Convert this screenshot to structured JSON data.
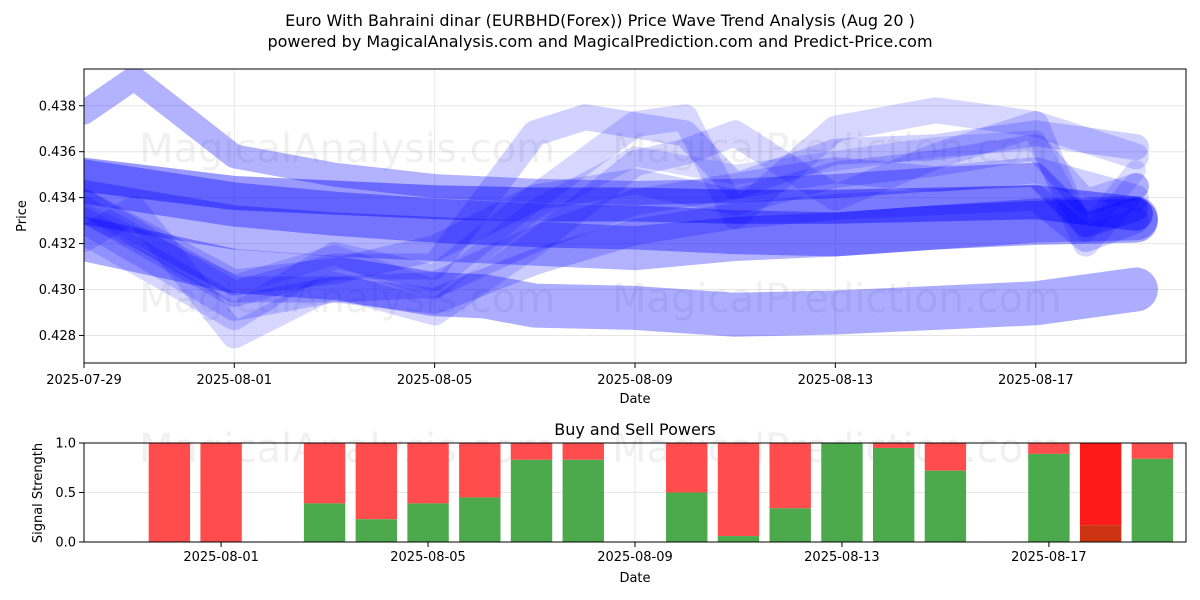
{
  "figure": {
    "title_line1": "Euro With Bahraini dinar (EURBHD(Forex)) Price Wave Trend Analysis (Aug 20 )",
    "title_line2": "powered by MagicalAnalysis.com and MagicalPrediction.com and Predict-Price.com",
    "watermark_left": "MagicalAnalysis.com",
    "watermark_right": "MagicalPrediction.com"
  },
  "chart_data": [
    {
      "type": "line",
      "xlabel": "Date",
      "ylabel": "Price",
      "x_ticks": [
        "2025-07-29",
        "2025-08-01",
        "2025-08-05",
        "2025-08-09",
        "2025-08-13",
        "2025-08-17"
      ],
      "y_ticks": [
        "0.428",
        "0.430",
        "0.432",
        "0.434",
        "0.436",
        "0.438"
      ],
      "ylim": [
        0.4268,
        0.4396
      ],
      "xlim": [
        "2025-07-29",
        "2025-08-20"
      ],
      "grid": true,
      "band_color": "#0000ff",
      "series": [
        {
          "x": [
            "2025-07-29",
            "2025-08-01",
            "2025-08-03",
            "2025-08-05",
            "2025-08-07",
            "2025-08-09",
            "2025-08-11",
            "2025-08-13",
            "2025-08-15",
            "2025-08-17",
            "2025-08-19"
          ],
          "values": [
            0.4338,
            0.4327,
            0.4324,
            0.4322,
            0.432,
            0.4318,
            0.4322,
            0.4324,
            0.4327,
            0.433,
            0.4331
          ],
          "width": 44,
          "opacity": 0.3
        },
        {
          "x": [
            "2025-07-29",
            "2025-08-01",
            "2025-08-03",
            "2025-08-05",
            "2025-08-07",
            "2025-08-09",
            "2025-08-11",
            "2025-08-13",
            "2025-08-15",
            "2025-08-17",
            "2025-08-19"
          ],
          "values": [
            0.4347,
            0.4337,
            0.4333,
            0.433,
            0.4328,
            0.4327,
            0.4325,
            0.4324,
            0.4327,
            0.4329,
            0.433
          ],
          "width": 44,
          "opacity": 0.35
        },
        {
          "x": [
            "2025-07-29",
            "2025-08-01",
            "2025-08-03",
            "2025-08-05",
            "2025-08-07",
            "2025-08-09",
            "2025-08-11",
            "2025-08-13",
            "2025-08-15",
            "2025-08-17",
            "2025-08-19"
          ],
          "values": [
            0.435,
            0.4342,
            0.434,
            0.4338,
            0.4337,
            0.4337,
            0.4336,
            0.4336,
            0.4337,
            0.4338,
            0.4333
          ],
          "width": 34,
          "opacity": 0.4
        },
        {
          "x": [
            "2025-07-29",
            "2025-08-01",
            "2025-08-03",
            "2025-08-05",
            "2025-08-06",
            "2025-08-07",
            "2025-08-09",
            "2025-08-11",
            "2025-08-13",
            "2025-08-15",
            "2025-08-17",
            "2025-08-19"
          ],
          "values": [
            0.4322,
            0.4308,
            0.4305,
            0.4298,
            0.4297,
            0.4293,
            0.4292,
            0.4289,
            0.429,
            0.4292,
            0.4294,
            0.43
          ],
          "width": 44,
          "opacity": 0.32
        },
        {
          "x": [
            "2025-07-29",
            "2025-08-01",
            "2025-08-03",
            "2025-08-05",
            "2025-08-07",
            "2025-08-09",
            "2025-08-11",
            "2025-08-13",
            "2025-08-15",
            "2025-08-17",
            "2025-08-18",
            "2025-08-19"
          ],
          "values": [
            0.4338,
            0.4303,
            0.4308,
            0.4318,
            0.434,
            0.4347,
            0.4338,
            0.435,
            0.4355,
            0.4362,
            0.4338,
            0.4345
          ],
          "width": 26,
          "opacity": 0.18
        },
        {
          "x": [
            "2025-07-29",
            "2025-08-01",
            "2025-08-03",
            "2025-08-05",
            "2025-08-07",
            "2025-08-08",
            "2025-08-10",
            "2025-08-11",
            "2025-08-13",
            "2025-08-15",
            "2025-08-17",
            "2025-08-19"
          ],
          "values": [
            0.4335,
            0.4298,
            0.431,
            0.431,
            0.4368,
            0.4375,
            0.4368,
            0.4345,
            0.436,
            0.4362,
            0.4368,
            0.4362
          ],
          "width": 26,
          "opacity": 0.18
        },
        {
          "x": [
            "2025-07-29",
            "2025-08-01",
            "2025-08-03",
            "2025-08-05",
            "2025-08-07",
            "2025-08-09",
            "2025-08-10",
            "2025-08-11",
            "2025-08-13",
            "2025-08-15",
            "2025-08-17",
            "2025-08-19"
          ],
          "values": [
            0.4325,
            0.4288,
            0.4315,
            0.4305,
            0.434,
            0.4372,
            0.4375,
            0.4332,
            0.437,
            0.4378,
            0.4372,
            0.4358
          ],
          "width": 26,
          "opacity": 0.16
        },
        {
          "x": [
            "2025-07-29",
            "2025-07-30",
            "2025-08-01",
            "2025-08-03",
            "2025-08-05",
            "2025-08-07",
            "2025-08-09",
            "2025-08-10",
            "2025-08-11",
            "2025-08-13",
            "2025-08-15",
            "2025-08-17",
            "2025-08-18",
            "2025-08-19"
          ],
          "values": [
            0.4322,
            0.4335,
            0.428,
            0.4302,
            0.429,
            0.432,
            0.4355,
            0.436,
            0.4368,
            0.434,
            0.4358,
            0.4372,
            0.432,
            0.4345
          ],
          "width": 26,
          "opacity": 0.16
        },
        {
          "x": [
            "2025-07-29",
            "2025-08-01",
            "2025-08-03",
            "2025-08-05",
            "2025-08-07",
            "2025-08-09",
            "2025-08-11",
            "2025-08-13",
            "2025-08-15",
            "2025-08-17",
            "2025-08-19"
          ],
          "values": [
            0.433,
            0.4292,
            0.43,
            0.4302,
            0.4322,
            0.4338,
            0.4345,
            0.4352,
            0.4348,
            0.4352,
            0.434
          ],
          "width": 26,
          "opacity": 0.18
        },
        {
          "x": [
            "2025-07-29",
            "2025-07-31",
            "2025-08-01",
            "2025-08-03",
            "2025-08-05",
            "2025-08-07",
            "2025-08-09",
            "2025-08-11",
            "2025-08-13",
            "2025-08-15",
            "2025-08-17",
            "2025-08-18",
            "2025-08-19"
          ],
          "values": [
            0.4338,
            0.4312,
            0.43,
            0.43,
            0.4295,
            0.4312,
            0.4325,
            0.4332,
            0.4336,
            0.4338,
            0.434,
            0.4322,
            0.433
          ],
          "width": 26,
          "opacity": 0.2
        },
        {
          "x": [
            "2025-07-29",
            "2025-07-30",
            "2025-07-31",
            "2025-08-01",
            "2025-08-03",
            "2025-08-05",
            "2025-08-07",
            "2025-08-09",
            "2025-08-11",
            "2025-08-13",
            "2025-08-15",
            "2025-08-17",
            "2025-08-18",
            "2025-08-19"
          ],
          "values": [
            0.4377,
            0.4392,
            0.4375,
            0.4358,
            0.435,
            0.4345,
            0.4343,
            0.4342,
            0.4343,
            0.4345,
            0.4348,
            0.435,
            0.4328,
            0.4335
          ],
          "width": 24,
          "opacity": 0.3
        },
        {
          "x": [
            "2025-07-29",
            "2025-08-01",
            "2025-08-03",
            "2025-08-05",
            "2025-08-07",
            "2025-08-09",
            "2025-08-11",
            "2025-08-13",
            "2025-08-15",
            "2025-08-17",
            "2025-08-18",
            "2025-08-19"
          ],
          "values": [
            0.4333,
            0.4302,
            0.4315,
            0.43,
            0.4335,
            0.4358,
            0.435,
            0.4356,
            0.4362,
            0.4365,
            0.4325,
            0.4352
          ],
          "width": 20,
          "opacity": 0.14
        }
      ]
    },
    {
      "type": "bar",
      "title": "Buy and Sell Powers",
      "xlabel": "Date",
      "ylabel": "Signal Strength",
      "x_ticks": [
        "2025-08-01",
        "2025-08-05",
        "2025-08-09",
        "2025-08-13",
        "2025-08-17"
      ],
      "y_ticks": [
        "0.0",
        "0.5",
        "1.0"
      ],
      "ylim": [
        0,
        1
      ],
      "buy_color": "#4caa4c",
      "sell_color": "#ff4c4c",
      "strong_sell_color": "#ff1a1a",
      "strong_buy_color": "#cc3311",
      "dates": [
        "2025-07-31",
        "2025-08-01",
        "2025-08-03",
        "2025-08-04",
        "2025-08-05",
        "2025-08-06",
        "2025-08-07",
        "2025-08-08",
        "2025-08-10",
        "2025-08-11",
        "2025-08-12",
        "2025-08-13",
        "2025-08-14",
        "2025-08-15",
        "2025-08-17",
        "2025-08-18",
        "2025-08-19"
      ],
      "buy": [
        0.0,
        0.0,
        0.39,
        0.23,
        0.39,
        0.45,
        0.83,
        0.83,
        0.5,
        0.06,
        0.34,
        1.0,
        0.95,
        0.72,
        0.89,
        0.17,
        0.84
      ],
      "strong": [
        false,
        false,
        false,
        false,
        false,
        false,
        false,
        false,
        false,
        false,
        false,
        false,
        false,
        false,
        false,
        true,
        false
      ]
    }
  ]
}
